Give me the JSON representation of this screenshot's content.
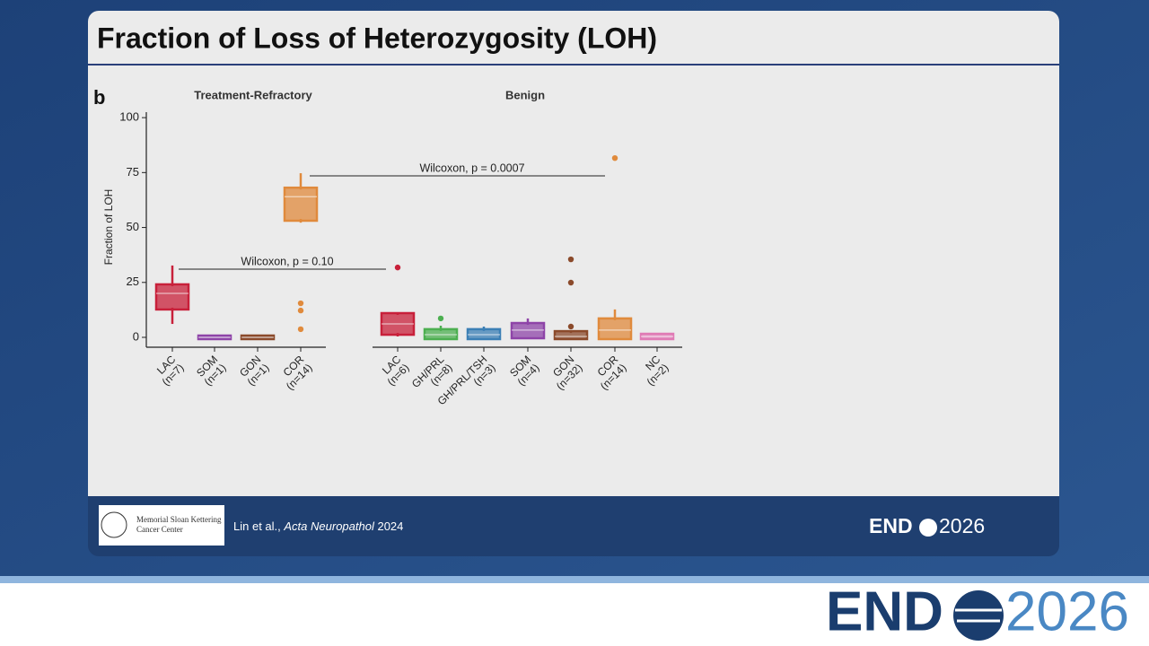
{
  "slide": {
    "title": "Fraction of Loss of Heterozygosity (LOH)",
    "footer": {
      "institution": [
        "Memorial Sloan Kettering",
        "Cancer Center"
      ],
      "citation": {
        "authors": "Lin et al.,",
        "journal": "Acta Neuropathol",
        "year": "2024"
      },
      "logo": {
        "left": "END",
        "right": "2026"
      }
    }
  },
  "chart_data": {
    "type": "box",
    "panel_label": "b",
    "ylabel": "Fraction of LOH",
    "ylim": [
      -4.5,
      102.5
    ],
    "yticks": [
      0,
      25,
      50,
      75,
      100
    ],
    "annotations": [
      "Wilcoxon, p = 0.10",
      "Wilcoxon, p = 0.0007"
    ],
    "groups": [
      {
        "name": "Treatment-Refractory",
        "boxes": [
          {
            "label": "LAC",
            "n": "(n=7)",
            "color": "#c8203a",
            "min": 6.1,
            "q1": 13.5,
            "median": 20,
            "q3": 23.3,
            "max": 32.7,
            "outliers": []
          },
          {
            "label": "SOM",
            "n": "(n=1)",
            "color": "#8e44a8",
            "min": 0,
            "q1": 0,
            "median": 0,
            "q3": 0,
            "max": 0,
            "outliers": []
          },
          {
            "label": "GON",
            "n": "(n=1)",
            "color": "#8b4a2b",
            "min": 0,
            "q1": 0,
            "median": 0,
            "q3": 0,
            "max": 0,
            "outliers": []
          },
          {
            "label": "COR",
            "n": "(n=14)",
            "color": "#e08a3c",
            "min": 52.2,
            "q1": 53.9,
            "median": 64,
            "q3": 67.3,
            "max": 74.7,
            "outliers": [
              15.5,
              12.2,
              3.7
            ]
          }
        ]
      },
      {
        "name": "Benign",
        "boxes": [
          {
            "label": "LAC",
            "n": "(n=6)",
            "color": "#c8203a",
            "min": 0.4,
            "q1": 2.0,
            "median": 6.1,
            "q3": 10.2,
            "max": 11,
            "outliers": [
              31.8
            ]
          },
          {
            "label": "GH/PRL",
            "n": "(n=8)",
            "color": "#4caf50",
            "min": 0,
            "q1": 0,
            "median": 1.2,
            "q3": 2.9,
            "max": 5.3,
            "outliers": [
              8.6
            ]
          },
          {
            "label": "GH/PRL/TSH",
            "n": "(n=3)",
            "color": "#3b7fb5",
            "min": 0,
            "q1": 0,
            "median": 1.2,
            "q3": 2.9,
            "max": 4.9,
            "outliers": []
          },
          {
            "label": "SOM",
            "n": "(n=4)",
            "color": "#8e44a8",
            "min": 0.4,
            "q1": 0.4,
            "median": 3.3,
            "q3": 5.7,
            "max": 8.6,
            "outliers": []
          },
          {
            "label": "GON",
            "n": "(n=32)",
            "color": "#8b4a2b",
            "min": 0,
            "q1": 0,
            "median": 0.4,
            "q3": 2.0,
            "max": 2.4,
            "outliers": [
              35.5,
              24.9,
              4.9
            ]
          },
          {
            "label": "COR",
            "n": "(n=14)",
            "color": "#e08a3c",
            "min": 0,
            "q1": 0,
            "median": 3.3,
            "q3": 7.8,
            "max": 12.7,
            "outliers": [
              81.6
            ]
          },
          {
            "label": "NC",
            "n": "(n=2)",
            "color": "#e07bb5",
            "min": 0,
            "q1": 0,
            "median": 0.4,
            "q3": 0.8,
            "max": 0.8,
            "outliers": []
          }
        ]
      }
    ]
  }
}
